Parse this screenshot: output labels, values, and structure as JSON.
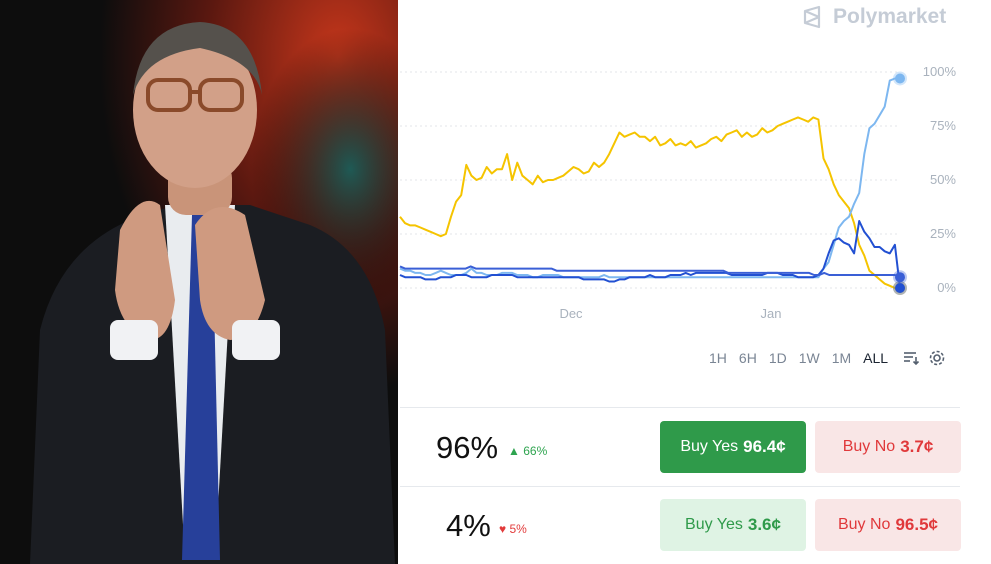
{
  "brand": {
    "name": "Polymarket",
    "icon": "polymarket-logo-icon"
  },
  "chart_data": {
    "type": "line",
    "x_tick_labels": [
      "Dec",
      "Jan"
    ],
    "y_tick_labels": [
      "100%",
      "75%",
      "50%",
      "25%",
      "0%"
    ],
    "ylim": [
      0,
      100
    ],
    "grid": "horizontal dotted",
    "series": [
      {
        "color": "#f5c400",
        "values": [
          33,
          30,
          29,
          29,
          28,
          27,
          26,
          25,
          24,
          25,
          33,
          40,
          43,
          57,
          52,
          50,
          51,
          56,
          53,
          55,
          55,
          62,
          50,
          58,
          52,
          50,
          48,
          52,
          49,
          50,
          50,
          51,
          52,
          54,
          56,
          55,
          53,
          54,
          58,
          56,
          58,
          62,
          67,
          72,
          70,
          71,
          72,
          70,
          70,
          68,
          70,
          66,
          67,
          69,
          66,
          67,
          66,
          68,
          65,
          66,
          67,
          69,
          70,
          68,
          71,
          72,
          73,
          70,
          72,
          70,
          71,
          74,
          72,
          73,
          75,
          76,
          77,
          78,
          79,
          78,
          77,
          79,
          78,
          60,
          55,
          48,
          43,
          40,
          37,
          30,
          20,
          15,
          8,
          6,
          4,
          2,
          1,
          0,
          0
        ]
      },
      {
        "color": "#7db7f0",
        "values": [
          9,
          8,
          8,
          7,
          7,
          6,
          6,
          7,
          8,
          7,
          6,
          6,
          6,
          7,
          9,
          7,
          7,
          6,
          6,
          6,
          7,
          7,
          7,
          6,
          6,
          6,
          5,
          5,
          6,
          6,
          6,
          6,
          5,
          5,
          5,
          5,
          5,
          5,
          5,
          5,
          6,
          5,
          5,
          5,
          5,
          5,
          5,
          5,
          5,
          5,
          5,
          5,
          5,
          5,
          5,
          5,
          5,
          5,
          5,
          5,
          5,
          5,
          5,
          5,
          5,
          5,
          5,
          5,
          5,
          5,
          5,
          5,
          5,
          5,
          5,
          5,
          5,
          5,
          5,
          5,
          5,
          5,
          5,
          9,
          12,
          20,
          28,
          31,
          33,
          39,
          44,
          62,
          74,
          76,
          80,
          84,
          96,
          97,
          97
        ]
      },
      {
        "color": "#2250d2",
        "values": [
          6,
          5,
          5,
          5,
          5,
          4,
          4,
          4,
          5,
          5,
          5,
          6,
          6,
          6,
          5,
          5,
          5,
          5,
          6,
          6,
          6,
          6,
          6,
          5,
          5,
          5,
          5,
          5,
          5,
          5,
          5,
          5,
          5,
          5,
          5,
          5,
          4,
          4,
          4,
          4,
          4,
          3,
          3,
          4,
          4,
          5,
          5,
          5,
          5,
          6,
          5,
          5,
          5,
          6,
          6,
          6,
          7,
          6,
          7,
          7,
          7,
          7,
          7,
          7,
          7,
          6,
          6,
          6,
          6,
          6,
          6,
          6,
          7,
          7,
          7,
          6,
          6,
          6,
          5,
          5,
          5,
          5,
          6,
          9,
          16,
          22,
          23,
          21,
          20,
          16,
          31,
          26,
          23,
          19,
          19,
          17,
          16,
          20,
          0
        ]
      },
      {
        "color": "#3a5fd6",
        "values": [
          10,
          9,
          9,
          9,
          9,
          9,
          9,
          9,
          9,
          9,
          9,
          9,
          9,
          9,
          10,
          9,
          9,
          9,
          9,
          9,
          9,
          9,
          9,
          9,
          9,
          9,
          9,
          9,
          9,
          9,
          9,
          8,
          8,
          8,
          8,
          8,
          8,
          8,
          8,
          8,
          8,
          8,
          8,
          8,
          8,
          8,
          8,
          8,
          8,
          8,
          8,
          8,
          8,
          8,
          8,
          8,
          8,
          8,
          8,
          8,
          8,
          8,
          8,
          8,
          8,
          7,
          7,
          7,
          7,
          7,
          7,
          7,
          7,
          7,
          7,
          7,
          7,
          7,
          7,
          7,
          7,
          7,
          6,
          6,
          7,
          6,
          6,
          6,
          6,
          6,
          6,
          6,
          6,
          6,
          6,
          6,
          6,
          6,
          6,
          5
        ]
      }
    ]
  },
  "time_ranges": [
    "1H",
    "6H",
    "1D",
    "1W",
    "1M",
    "ALL"
  ],
  "active_range": "ALL",
  "tools": {
    "filter_icon": "list-filter-icon",
    "settings_icon": "gear-icon"
  },
  "outcomes": [
    {
      "percent": "96%",
      "change": "66%",
      "direction": "up",
      "yes_label": "Buy Yes",
      "yes_price": "96.4¢",
      "no_label": "Buy No",
      "no_price": "3.7¢"
    },
    {
      "percent": "4%",
      "change": "5%",
      "direction": "down",
      "yes_label": "Buy Yes",
      "yes_price": "3.6¢",
      "no_label": "Buy No",
      "no_price": "96.5¢"
    }
  ],
  "colors": {
    "yes_green": "#2f9a4a",
    "no_red": "#e0393b"
  }
}
